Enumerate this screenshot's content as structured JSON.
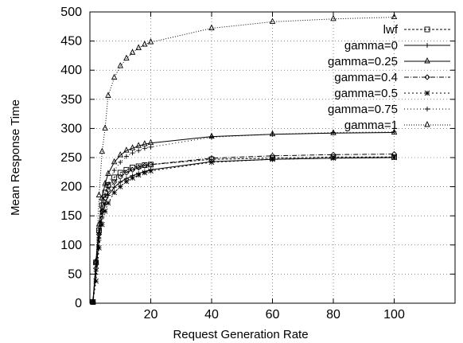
{
  "chart_data": {
    "type": "line",
    "title": "",
    "xlabel": "Request Generation Rate",
    "ylabel": "Mean Response Time",
    "xlim": [
      0,
      120
    ],
    "ylim": [
      0,
      500
    ],
    "xticks": [
      20,
      40,
      60,
      80,
      100
    ],
    "yticks": [
      0,
      50,
      100,
      150,
      200,
      250,
      300,
      350,
      400,
      450,
      500
    ],
    "grid": true,
    "legend_position": "top-right",
    "x": [
      1,
      2,
      3,
      4,
      5,
      6,
      8,
      10,
      12,
      14,
      16,
      18,
      20,
      40,
      60,
      80,
      100
    ],
    "series": [
      {
        "name": "lwf",
        "marker": "square",
        "dash": "3,2",
        "values": [
          2,
          70,
          125,
          168,
          190,
          203,
          216,
          224,
          229,
          233,
          235,
          237,
          238,
          247,
          249,
          251,
          251
        ]
      },
      {
        "name": "gamma=0",
        "marker": "plus",
        "dash": "",
        "values": [
          2,
          55,
          108,
          148,
          170,
          185,
          199,
          208,
          214,
          219,
          223,
          226,
          229,
          243,
          247,
          249,
          250
        ]
      },
      {
        "name": "gamma=0.25",
        "marker": "triangle",
        "dash": "",
        "values": [
          2,
          72,
          135,
          180,
          205,
          222,
          242,
          254,
          262,
          266,
          270,
          273,
          275,
          286,
          290,
          292,
          293
        ]
      },
      {
        "name": "gamma=0.4",
        "marker": "diamond",
        "dash": "6,2,1,2",
        "values": [
          2,
          60,
          118,
          158,
          180,
          194,
          208,
          217,
          224,
          229,
          233,
          236,
          238,
          249,
          253,
          255,
          256
        ]
      },
      {
        "name": "gamma=0.5",
        "marker": "star",
        "dash": "2,3",
        "values": [
          2,
          38,
          95,
          135,
          158,
          172,
          190,
          200,
          209,
          215,
          220,
          224,
          227,
          242,
          247,
          249,
          250
        ]
      },
      {
        "name": "gamma=0.75",
        "marker": "plus",
        "dash": "1,3",
        "values": [
          2,
          50,
          112,
          158,
          186,
          204,
          228,
          242,
          252,
          258,
          262,
          266,
          268,
          285,
          290,
          293,
          294
        ]
      },
      {
        "name": "gamma=1",
        "marker": "triangle",
        "dash": "1,2",
        "values": [
          2,
          70,
          185,
          260,
          300,
          356,
          387,
          407,
          420,
          430,
          438,
          444,
          448,
          472,
          483,
          488,
          491
        ]
      }
    ]
  }
}
